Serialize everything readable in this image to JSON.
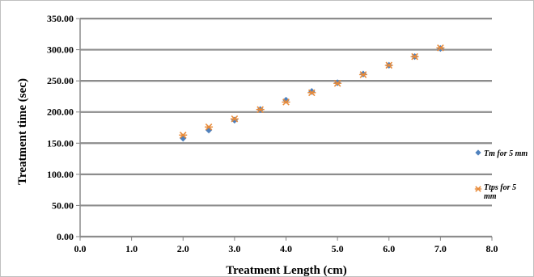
{
  "chart_data": {
    "type": "scatter",
    "title": "",
    "xlabel": "Treatment Length (cm)",
    "ylabel": "Treatment time (sec)",
    "xlim": [
      0,
      8
    ],
    "ylim": [
      0,
      350
    ],
    "x_ticks": [
      "0.0",
      "1.0",
      "2.0",
      "3.0",
      "4.0",
      "5.0",
      "6.0",
      "7.0",
      "8.0"
    ],
    "y_ticks": [
      "0.00",
      "50.00",
      "100.00",
      "150.00",
      "200.00",
      "250.00",
      "300.00",
      "350.00"
    ],
    "grid": "horizontal",
    "legend_position": "right",
    "series": [
      {
        "name": "Tm for 5 mm",
        "legend_label": "Tm for 5 mm",
        "marker": "diamond",
        "color": "#4f81bd",
        "x": [
          2.0,
          2.5,
          3.0,
          3.5,
          4.0,
          4.5,
          5.0,
          5.5,
          6.0,
          6.5,
          7.0
        ],
        "y": [
          158,
          171,
          187,
          204,
          219,
          233,
          247,
          261,
          275,
          289,
          302
        ]
      },
      {
        "name": "Ttps for 5 mm",
        "legend_label_lines": [
          "Ttps for 5",
          "mm"
        ],
        "marker": "star",
        "color": "#e88b3a",
        "x": [
          2.0,
          2.5,
          3.0,
          3.5,
          4.0,
          4.5,
          5.0,
          5.5,
          6.0,
          6.5,
          7.0
        ],
        "y": [
          163,
          176,
          189,
          204,
          216,
          231,
          246,
          260,
          275,
          289,
          303
        ]
      }
    ]
  }
}
